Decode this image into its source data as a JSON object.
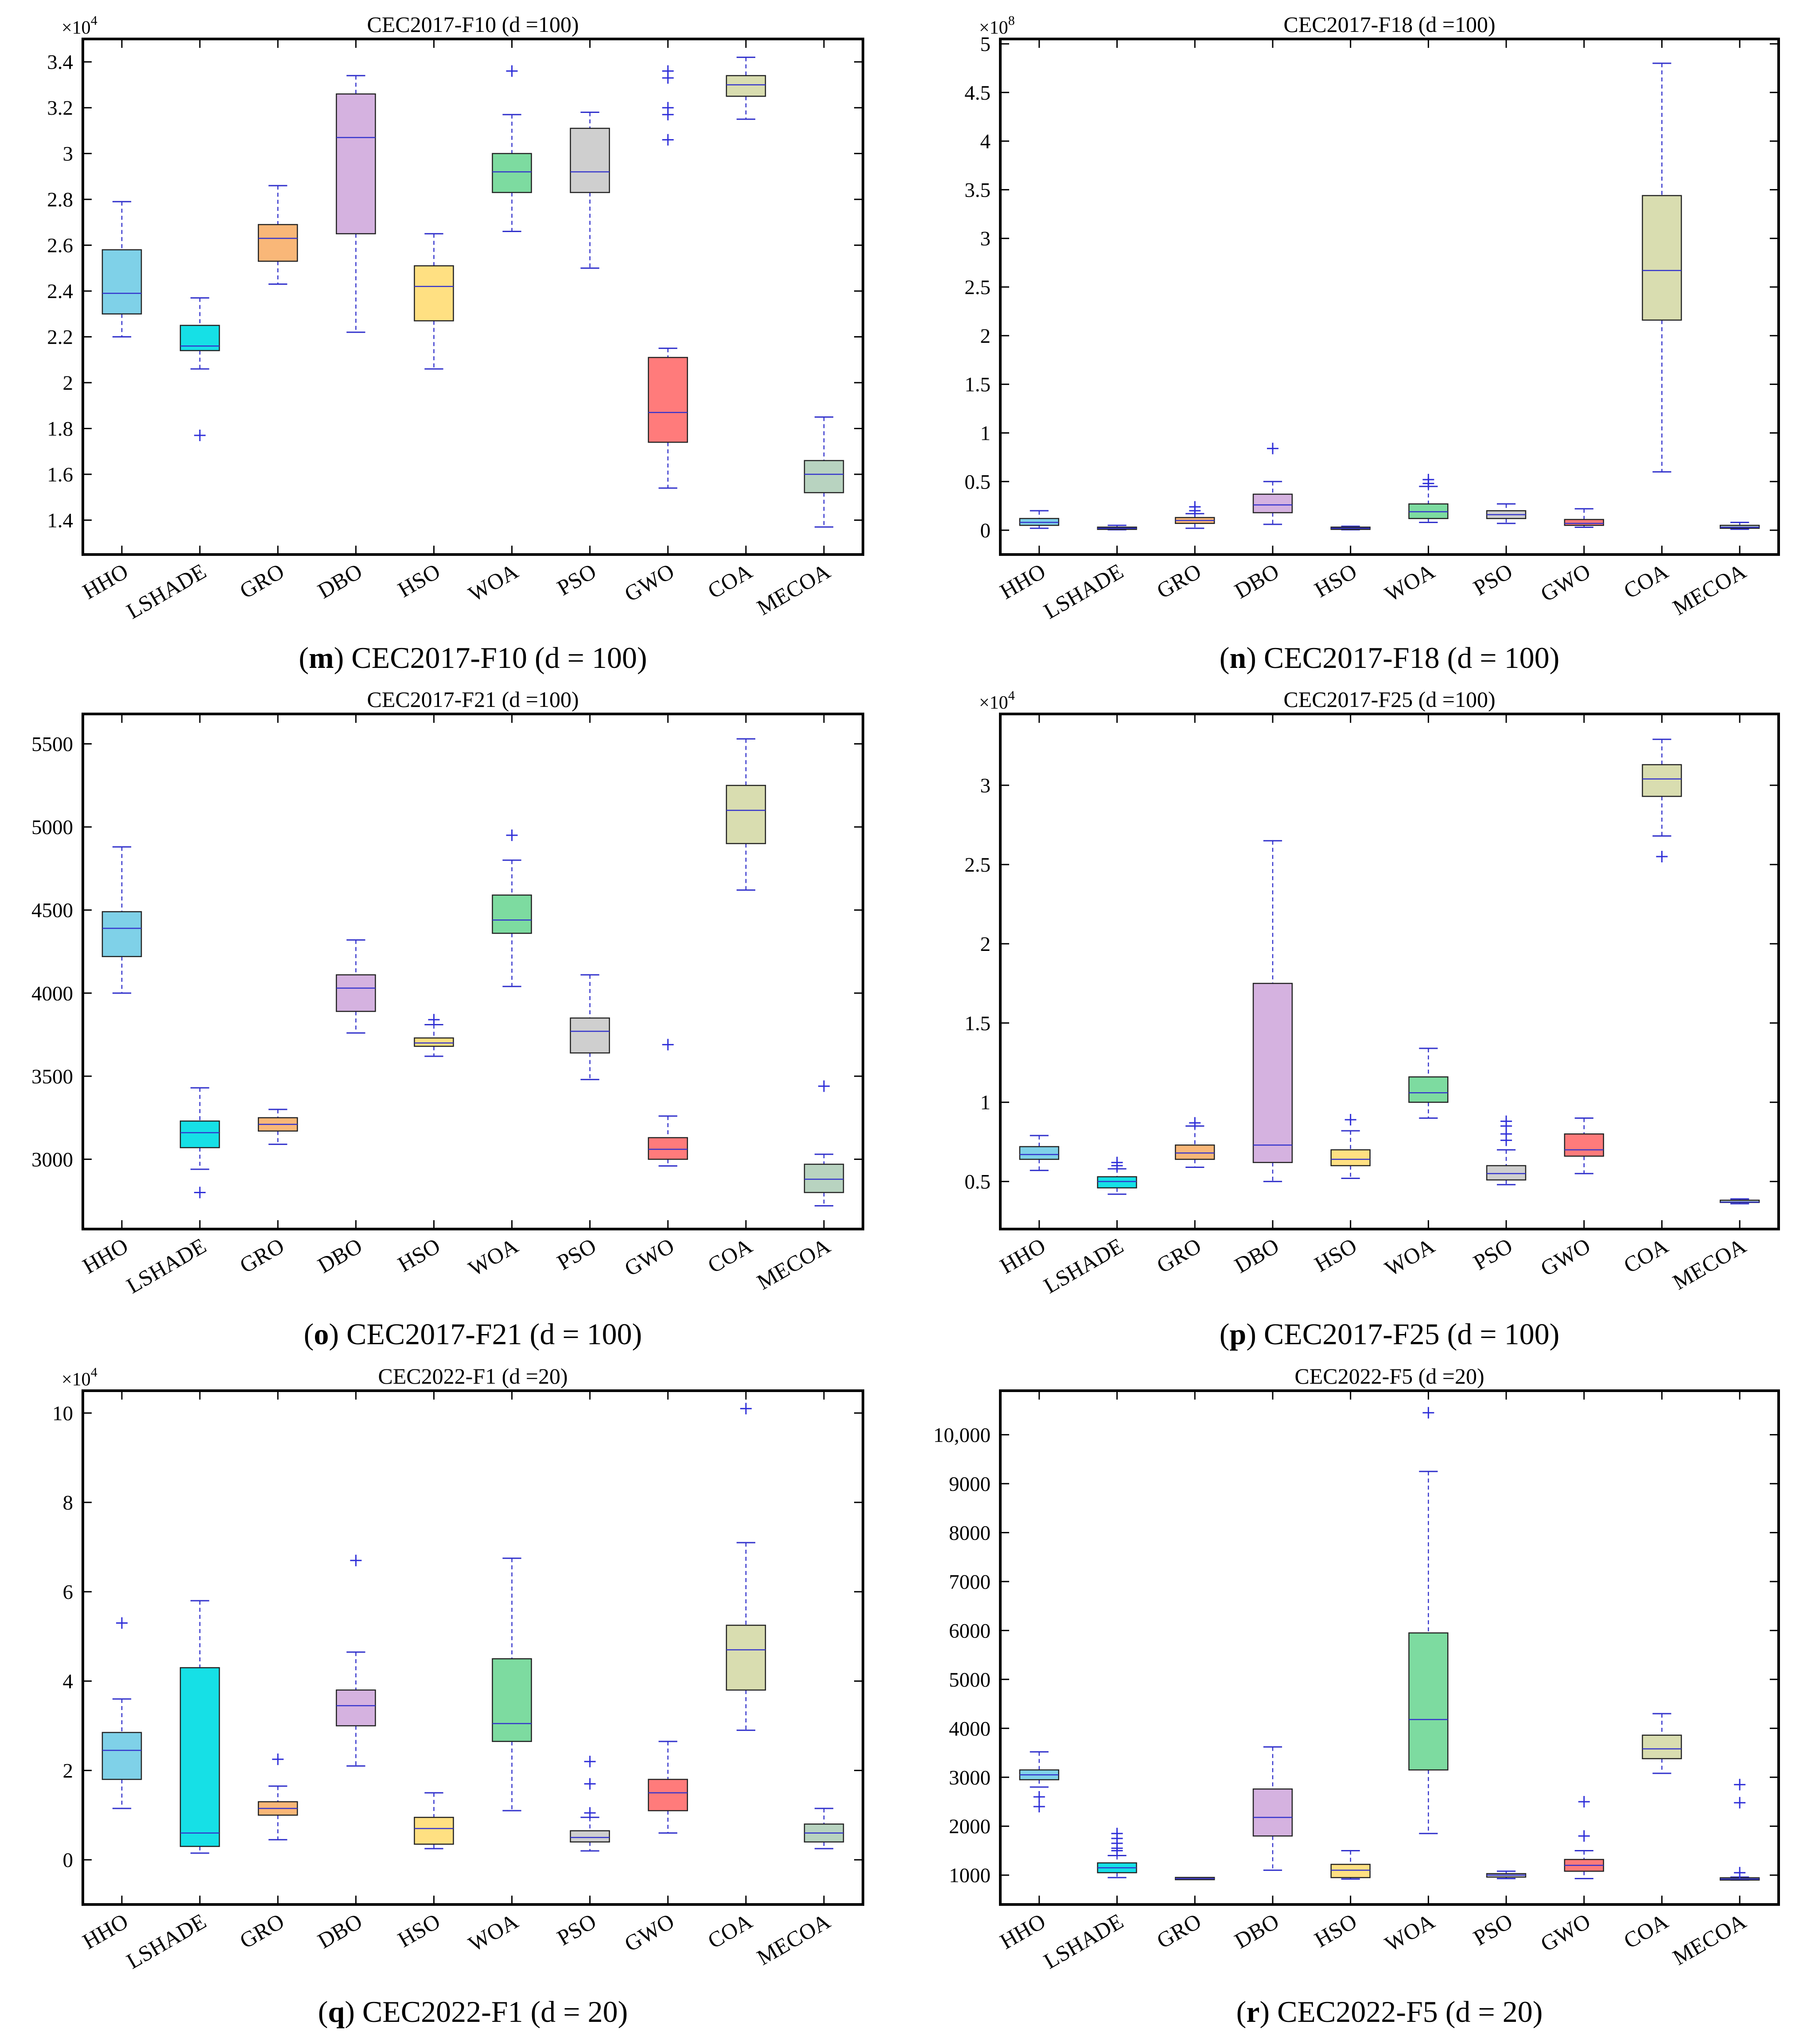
{
  "palette": [
    "#7fd1e8",
    "#16e0e6",
    "#f9b778",
    "#d5b2e0",
    "#ffe082",
    "#7ddba0",
    "#cfcfcf",
    "#ff7b7b",
    "#d9ddb0",
    "#b8d3c0"
  ],
  "whisker_color": "#3333cc",
  "outlier_color": "#2f2fd8",
  "chart_data": [
    {
      "type": "box",
      "title": "CEC2017-F10 (d =100)",
      "caption": {
        "letter": "m",
        "text": "CEC2017-F10 (d = 100)"
      },
      "categories": [
        "HHO",
        "LSHADE",
        "GRO",
        "DBO",
        "HSO",
        "WOA",
        "PSO",
        "GWO",
        "COA",
        "MECOA"
      ],
      "exponent": "4",
      "ylim": [
        1.25,
        3.5
      ],
      "yticks": [
        1.4,
        1.6,
        1.8,
        2,
        2.2,
        2.4,
        2.6,
        2.8,
        3,
        3.2,
        3.4
      ],
      "ytick_labels": [
        "1.4",
        "1.6",
        "1.8",
        "2",
        "2.2",
        "2.4",
        "2.6",
        "2.8",
        "3",
        "3.2",
        "3.4"
      ],
      "boxes": [
        {
          "min": 2.2,
          "q1": 2.3,
          "median": 2.39,
          "q3": 2.58,
          "max": 2.79,
          "outliers": []
        },
        {
          "min": 2.06,
          "q1": 2.14,
          "median": 2.16,
          "q3": 2.25,
          "max": 2.37,
          "outliers": [
            1.77
          ]
        },
        {
          "min": 2.43,
          "q1": 2.53,
          "median": 2.63,
          "q3": 2.69,
          "max": 2.86,
          "outliers": []
        },
        {
          "min": 2.22,
          "q1": 2.65,
          "median": 3.07,
          "q3": 3.26,
          "max": 3.34,
          "outliers": []
        },
        {
          "min": 2.06,
          "q1": 2.27,
          "median": 2.42,
          "q3": 2.51,
          "max": 2.65,
          "outliers": []
        },
        {
          "min": 2.66,
          "q1": 2.83,
          "median": 2.92,
          "q3": 3.0,
          "max": 3.17,
          "outliers": [
            3.36
          ]
        },
        {
          "min": 2.5,
          "q1": 2.83,
          "median": 2.92,
          "q3": 3.11,
          "max": 3.18,
          "outliers": []
        },
        {
          "min": 1.54,
          "q1": 1.74,
          "median": 1.87,
          "q3": 2.11,
          "max": 2.15,
          "outliers": [
            3.36,
            3.33,
            3.2,
            3.17,
            3.06
          ]
        },
        {
          "min": 3.15,
          "q1": 3.25,
          "median": 3.3,
          "q3": 3.34,
          "max": 3.42,
          "outliers": []
        },
        {
          "min": 1.37,
          "q1": 1.52,
          "median": 1.6,
          "q3": 1.66,
          "max": 1.85,
          "outliers": []
        }
      ]
    },
    {
      "type": "box",
      "title": "CEC2017-F18 (d =100)",
      "caption": {
        "letter": "n",
        "text": "CEC2017-F18 (d = 100)"
      },
      "categories": [
        "HHO",
        "LSHADE",
        "GRO",
        "DBO",
        "HSO",
        "WOA",
        "PSO",
        "GWO",
        "COA",
        "MECOA"
      ],
      "exponent": "8",
      "ylim": [
        -0.25,
        5.05
      ],
      "yticks": [
        0,
        0.5,
        1,
        1.5,
        2,
        2.5,
        3,
        3.5,
        4,
        4.5,
        5
      ],
      "ytick_labels": [
        "0",
        "0.5",
        "1",
        "1.5",
        "2",
        "2.5",
        "3",
        "3.5",
        "4",
        "4.5",
        "5"
      ],
      "boxes": [
        {
          "min": 0.02,
          "q1": 0.05,
          "median": 0.08,
          "q3": 0.12,
          "max": 0.2,
          "outliers": []
        },
        {
          "min": 0.005,
          "q1": 0.01,
          "median": 0.02,
          "q3": 0.03,
          "max": 0.05,
          "outliers": []
        },
        {
          "min": 0.02,
          "q1": 0.07,
          "median": 0.1,
          "q3": 0.13,
          "max": 0.17,
          "outliers": [
            0.24,
            0.2
          ]
        },
        {
          "min": 0.06,
          "q1": 0.18,
          "median": 0.26,
          "q3": 0.37,
          "max": 0.5,
          "outliers": [
            0.84
          ]
        },
        {
          "min": 0.005,
          "q1": 0.01,
          "median": 0.02,
          "q3": 0.03,
          "max": 0.04,
          "outliers": []
        },
        {
          "min": 0.08,
          "q1": 0.12,
          "median": 0.19,
          "q3": 0.27,
          "max": 0.45,
          "outliers": [
            0.52,
            0.48
          ]
        },
        {
          "min": 0.07,
          "q1": 0.12,
          "median": 0.16,
          "q3": 0.2,
          "max": 0.27,
          "outliers": []
        },
        {
          "min": 0.03,
          "q1": 0.05,
          "median": 0.07,
          "q3": 0.11,
          "max": 0.22,
          "outliers": []
        },
        {
          "min": 0.6,
          "q1": 2.16,
          "median": 2.67,
          "q3": 3.44,
          "max": 4.8,
          "outliers": []
        },
        {
          "min": 0.01,
          "q1": 0.02,
          "median": 0.03,
          "q3": 0.05,
          "max": 0.08,
          "outliers": []
        }
      ]
    },
    {
      "type": "box",
      "title": "CEC2017-F21 (d =100)",
      "caption": {
        "letter": "o",
        "text": "CEC2017-F21 (d = 100)"
      },
      "categories": [
        "HHO",
        "LSHADE",
        "GRO",
        "DBO",
        "HSO",
        "WOA",
        "PSO",
        "GWO",
        "COA",
        "MECOA"
      ],
      "exponent": "",
      "ylim": [
        2580,
        5680
      ],
      "yticks": [
        3000,
        3500,
        4000,
        4500,
        5000,
        5500
      ],
      "ytick_labels": [
        "3000",
        "3500",
        "4000",
        "4500",
        "5000",
        "5500"
      ],
      "boxes": [
        {
          "min": 4000,
          "q1": 4220,
          "median": 4390,
          "q3": 4490,
          "max": 4880,
          "outliers": []
        },
        {
          "min": 2940,
          "q1": 3070,
          "median": 3160,
          "q3": 3230,
          "max": 3430,
          "outliers": [
            2800
          ]
        },
        {
          "min": 3090,
          "q1": 3170,
          "median": 3210,
          "q3": 3250,
          "max": 3300,
          "outliers": []
        },
        {
          "min": 3760,
          "q1": 3890,
          "median": 4030,
          "q3": 4110,
          "max": 4320,
          "outliers": []
        },
        {
          "min": 3620,
          "q1": 3680,
          "median": 3700,
          "q3": 3730,
          "max": 3810,
          "outliers": [
            3840
          ]
        },
        {
          "min": 4040,
          "q1": 4360,
          "median": 4440,
          "q3": 4590,
          "max": 4800,
          "outliers": [
            4950
          ]
        },
        {
          "min": 3480,
          "q1": 3640,
          "median": 3770,
          "q3": 3850,
          "max": 4110,
          "outliers": []
        },
        {
          "min": 2960,
          "q1": 3000,
          "median": 3060,
          "q3": 3130,
          "max": 3260,
          "outliers": [
            3690
          ]
        },
        {
          "min": 4620,
          "q1": 4900,
          "median": 5100,
          "q3": 5250,
          "max": 5530,
          "outliers": []
        },
        {
          "min": 2720,
          "q1": 2800,
          "median": 2880,
          "q3": 2970,
          "max": 3030,
          "outliers": [
            3440
          ]
        }
      ]
    },
    {
      "type": "box",
      "title": "CEC2017-F25 (d =100)",
      "caption": {
        "letter": "p",
        "text": "CEC2017-F25 (d = 100)"
      },
      "categories": [
        "HHO",
        "LSHADE",
        "GRO",
        "DBO",
        "HSO",
        "WOA",
        "PSO",
        "GWO",
        "COA",
        "MECOA"
      ],
      "exponent": "4",
      "ylim": [
        0.2,
        3.45
      ],
      "yticks": [
        0.5,
        1,
        1.5,
        2,
        2.5,
        3
      ],
      "ytick_labels": [
        "0.5",
        "1",
        "1.5",
        "2",
        "2.5",
        "3"
      ],
      "boxes": [
        {
          "min": 0.57,
          "q1": 0.64,
          "median": 0.67,
          "q3": 0.72,
          "max": 0.79,
          "outliers": []
        },
        {
          "min": 0.42,
          "q1": 0.46,
          "median": 0.5,
          "q3": 0.53,
          "max": 0.58,
          "outliers": [
            0.62,
            0.6
          ]
        },
        {
          "min": 0.59,
          "q1": 0.64,
          "median": 0.68,
          "q3": 0.73,
          "max": 0.85,
          "outliers": [
            0.87
          ]
        },
        {
          "min": 0.5,
          "q1": 0.62,
          "median": 0.73,
          "q3": 1.75,
          "max": 2.65,
          "outliers": []
        },
        {
          "min": 0.52,
          "q1": 0.6,
          "median": 0.64,
          "q3": 0.7,
          "max": 0.82,
          "outliers": [
            0.89
          ]
        },
        {
          "min": 0.9,
          "q1": 1.0,
          "median": 1.06,
          "q3": 1.16,
          "max": 1.34,
          "outliers": []
        },
        {
          "min": 0.48,
          "q1": 0.51,
          "median": 0.55,
          "q3": 0.6,
          "max": 0.7,
          "outliers": [
            0.88,
            0.85,
            0.8,
            0.76
          ]
        },
        {
          "min": 0.55,
          "q1": 0.66,
          "median": 0.7,
          "q3": 0.8,
          "max": 0.9,
          "outliers": []
        },
        {
          "min": 2.68,
          "q1": 2.93,
          "median": 3.04,
          "q3": 3.13,
          "max": 3.29,
          "outliers": [
            2.55
          ]
        },
        {
          "min": 0.36,
          "q1": 0.37,
          "median": 0.37,
          "q3": 0.38,
          "max": 0.39,
          "outliers": []
        }
      ]
    },
    {
      "type": "box",
      "title": "CEC2022-F1 (d =20)",
      "caption": {
        "letter": "q",
        "text": "CEC2022-F1 (d = 20)"
      },
      "categories": [
        "HHO",
        "LSHADE",
        "GRO",
        "DBO",
        "HSO",
        "WOA",
        "PSO",
        "GWO",
        "COA",
        "MECOA"
      ],
      "exponent": "4",
      "ylim": [
        -1.0,
        10.5
      ],
      "yticks": [
        0,
        2,
        4,
        6,
        8,
        10
      ],
      "ytick_labels": [
        "0",
        "2",
        "4",
        "6",
        "8",
        "10"
      ],
      "boxes": [
        {
          "min": 1.15,
          "q1": 1.8,
          "median": 2.45,
          "q3": 2.85,
          "max": 3.6,
          "outliers": [
            5.3
          ]
        },
        {
          "min": 0.15,
          "q1": 0.3,
          "median": 0.6,
          "q3": 4.3,
          "max": 5.8,
          "outliers": []
        },
        {
          "min": 0.45,
          "q1": 1.0,
          "median": 1.15,
          "q3": 1.3,
          "max": 1.65,
          "outliers": [
            2.25
          ]
        },
        {
          "min": 2.1,
          "q1": 3.0,
          "median": 3.45,
          "q3": 3.8,
          "max": 4.65,
          "outliers": [
            6.7
          ]
        },
        {
          "min": 0.25,
          "q1": 0.35,
          "median": 0.7,
          "q3": 0.95,
          "max": 1.5,
          "outliers": []
        },
        {
          "min": 1.1,
          "q1": 2.65,
          "median": 3.05,
          "q3": 4.5,
          "max": 6.75,
          "outliers": []
        },
        {
          "min": 0.2,
          "q1": 0.4,
          "median": 0.5,
          "q3": 0.65,
          "max": 0.95,
          "outliers": [
            2.2,
            1.7,
            1.05
          ]
        },
        {
          "min": 0.6,
          "q1": 1.1,
          "median": 1.5,
          "q3": 1.8,
          "max": 2.65,
          "outliers": []
        },
        {
          "min": 2.9,
          "q1": 3.8,
          "median": 4.7,
          "q3": 5.25,
          "max": 7.1,
          "outliers": [
            10.1
          ]
        },
        {
          "min": 0.25,
          "q1": 0.4,
          "median": 0.6,
          "q3": 0.8,
          "max": 1.15,
          "outliers": []
        }
      ]
    },
    {
      "type": "box",
      "title": "CEC2022-F5 (d =20)",
      "caption": {
        "letter": "r",
        "text": "CEC2022-F5 (d = 20)"
      },
      "categories": [
        "HHO",
        "LSHADE",
        "GRO",
        "DBO",
        "HSO",
        "WOA",
        "PSO",
        "GWO",
        "COA",
        "MECOA"
      ],
      "exponent": "",
      "ylim": [
        400,
        10900
      ],
      "yticks": [
        1000,
        2000,
        3000,
        4000,
        5000,
        6000,
        7000,
        8000,
        9000,
        10000
      ],
      "ytick_labels": [
        "1000",
        "2000",
        "3000",
        "4000",
        "5000",
        "6000",
        "7000",
        "8000",
        "9000",
        "10,000"
      ],
      "boxes": [
        {
          "min": 2800,
          "q1": 2950,
          "median": 3050,
          "q3": 3150,
          "max": 3520,
          "outliers": [
            2600,
            2400
          ]
        },
        {
          "min": 950,
          "q1": 1050,
          "median": 1150,
          "q3": 1250,
          "max": 1400,
          "outliers": [
            1850,
            1750,
            1650,
            1550,
            1500
          ]
        },
        {
          "min": 920,
          "q1": 925,
          "median": 930,
          "q3": 935,
          "max": 945,
          "outliers": []
        },
        {
          "min": 1100,
          "q1": 1800,
          "median": 2180,
          "q3": 2760,
          "max": 3620,
          "outliers": []
        },
        {
          "min": 920,
          "q1": 950,
          "median": 1100,
          "q3": 1220,
          "max": 1500,
          "outliers": []
        },
        {
          "min": 1850,
          "q1": 3150,
          "median": 4180,
          "q3": 5950,
          "max": 9250,
          "outliers": [
            10450
          ]
        },
        {
          "min": 930,
          "q1": 960,
          "median": 1000,
          "q3": 1030,
          "max": 1080,
          "outliers": []
        },
        {
          "min": 930,
          "q1": 1080,
          "median": 1200,
          "q3": 1320,
          "max": 1500,
          "outliers": [
            2500,
            1800
          ]
        },
        {
          "min": 3080,
          "q1": 3380,
          "median": 3580,
          "q3": 3860,
          "max": 4300,
          "outliers": []
        },
        {
          "min": 900,
          "q1": 910,
          "median": 920,
          "q3": 935,
          "max": 960,
          "outliers": [
            2850,
            2480,
            1050
          ]
        }
      ]
    }
  ]
}
